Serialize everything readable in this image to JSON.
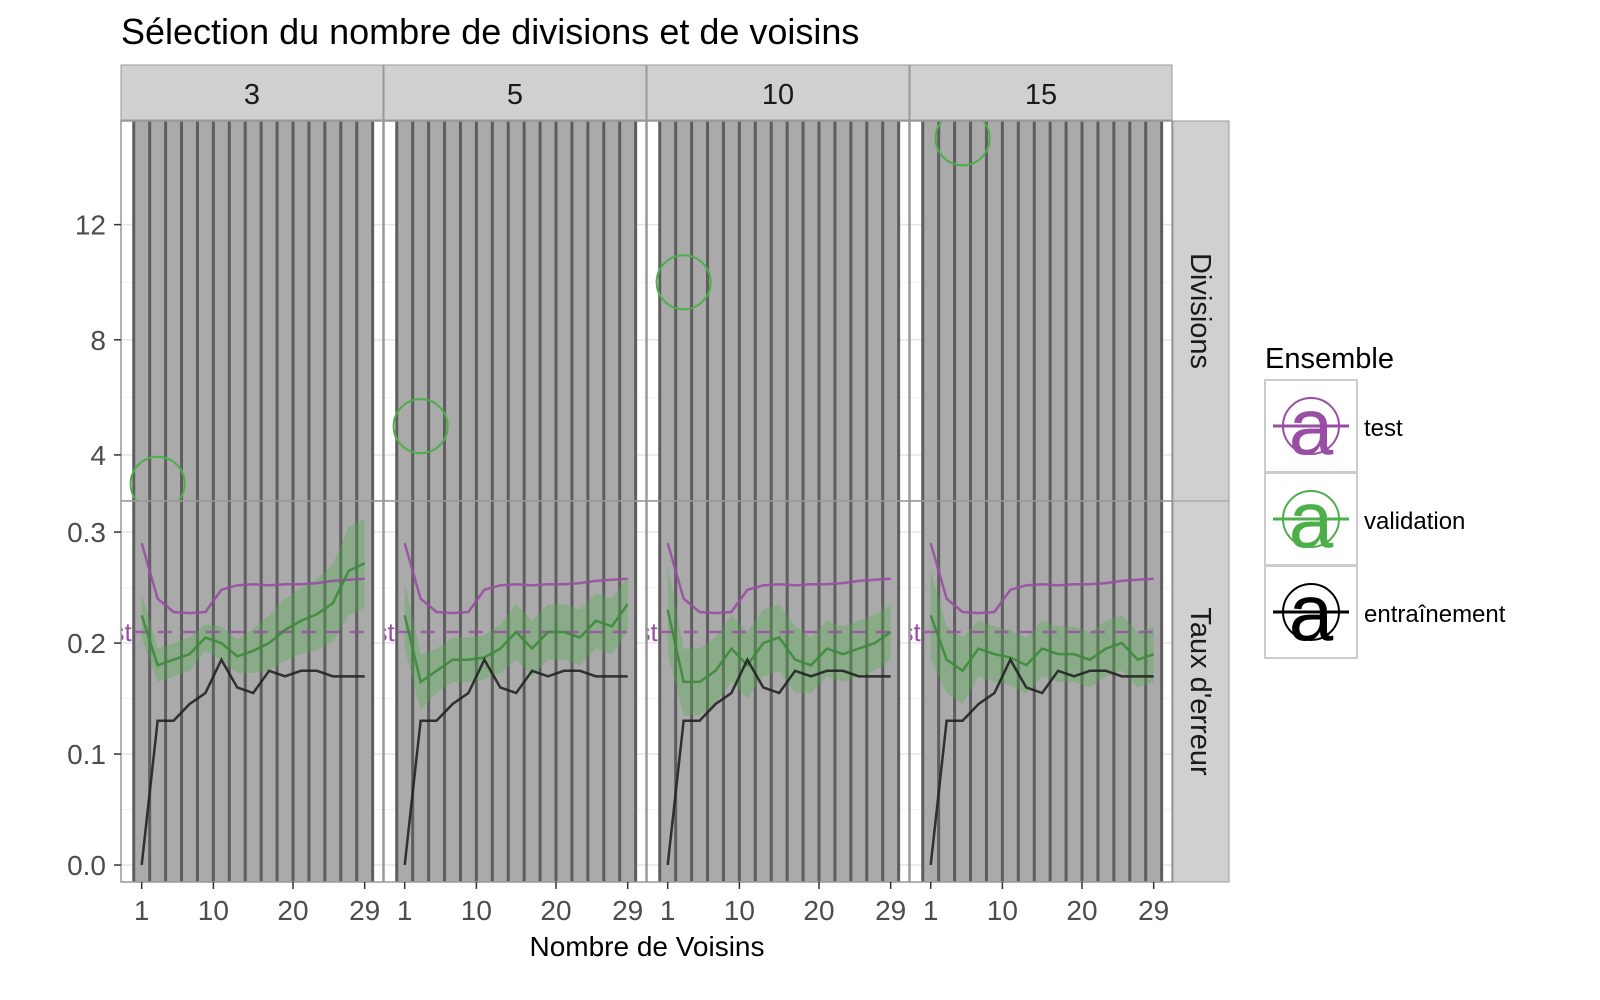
{
  "chart_data": {
    "type": "line",
    "title": "Sélection du nombre de divisions et de voisins",
    "xlabel": "Nombre de Voisins",
    "x_ticks": [
      1,
      10,
      20,
      29
    ],
    "xlim": [
      -1.6,
      31.3
    ],
    "facet_cols": [
      "3",
      "5",
      "10",
      "15"
    ],
    "facet_rows": [
      {
        "label": "Divisions",
        "ylim": [
          2.4,
          15.6
        ],
        "y_ticks": [
          4,
          8,
          12
        ],
        "y_tick_labels": [
          "4",
          "8",
          "12"
        ]
      },
      {
        "label": "Taux d'erreur",
        "ylim": [
          -0.0153,
          0.328
        ],
        "y_ticks": [
          0,
          0.1,
          0.2,
          0.3
        ],
        "y_tick_labels": [
          "0.0",
          "0.1",
          "0.2",
          "0.3"
        ]
      }
    ],
    "selected_neighbors": [
      {
        "divisions": 3,
        "neighbors": 3
      },
      {
        "divisions": 5,
        "neighbors": 3
      },
      {
        "divisions": 10,
        "neighbors": 3
      },
      {
        "divisions": 15,
        "neighbors": 5
      }
    ],
    "shaded_region": {
      "x_from": 0,
      "x_to": 30,
      "stripe_step": 2
    },
    "test_reference": {
      "value": 0.21,
      "label": "test"
    },
    "x": [
      1,
      3,
      5,
      7,
      9,
      11,
      13,
      15,
      17,
      19,
      21,
      23,
      25,
      27,
      29
    ],
    "series": [
      {
        "name": "entraînement",
        "color": "#000000",
        "values": [
          0,
          0.13,
          0.13,
          0.145,
          0.155,
          0.185,
          0.16,
          0.155,
          0.175,
          0.17,
          0.175,
          0.175,
          0.17,
          0.17,
          0.17
        ]
      },
      {
        "name": "test",
        "color": "#984ea3",
        "values": [
          0.29,
          0.24,
          0.228,
          0.227,
          0.228,
          0.248,
          0.252,
          0.253,
          0.252,
          0.253,
          0.253,
          0.254,
          0.256,
          0.257,
          0.258
        ]
      },
      {
        "name": "validation",
        "color": "#4daf4a",
        "by_divisions": {
          "3": {
            "values": [
              0.225,
              0.18,
              0.185,
              0.19,
              0.205,
              0.2,
              0.188,
              0.193,
              0.2,
              0.212,
              0.22,
              0.226,
              0.236,
              0.265,
              0.272
            ],
            "band": [
              0.02,
              0.015,
              0.015,
              0.015,
              0.012,
              0.015,
              0.015,
              0.02,
              0.025,
              0.028,
              0.03,
              0.032,
              0.035,
              0.04,
              0.04
            ]
          },
          "5": {
            "values": [
              0.225,
              0.165,
              0.175,
              0.185,
              0.185,
              0.187,
              0.195,
              0.21,
              0.195,
              0.21,
              0.21,
              0.205,
              0.22,
              0.215,
              0.235
            ],
            "band": [
              0.03,
              0.025,
              0.02,
              0.02,
              0.02,
              0.02,
              0.022,
              0.025,
              0.025,
              0.025,
              0.025,
              0.025,
              0.025,
              0.025,
              0.025
            ]
          },
          "10": {
            "values": [
              0.23,
              0.165,
              0.165,
              0.175,
              0.195,
              0.18,
              0.2,
              0.205,
              0.185,
              0.18,
              0.195,
              0.19,
              0.195,
              0.2,
              0.21
            ],
            "band": [
              0.04,
              0.03,
              0.03,
              0.03,
              0.03,
              0.03,
              0.03,
              0.03,
              0.03,
              0.025,
              0.025,
              0.025,
              0.025,
              0.025,
              0.025
            ]
          },
          "15": {
            "values": [
              0.225,
              0.185,
              0.175,
              0.195,
              0.19,
              0.187,
              0.18,
              0.195,
              0.19,
              0.19,
              0.185,
              0.195,
              0.2,
              0.185,
              0.19
            ],
            "band": [
              0.04,
              0.03,
              0.03,
              0.025,
              0.025,
              0.025,
              0.025,
              0.025,
              0.025,
              0.025,
              0.025,
              0.025,
              0.025,
              0.025,
              0.025
            ]
          }
        }
      }
    ],
    "legend": {
      "title": "Ensemble",
      "placement": "right",
      "entries": [
        {
          "label": "test",
          "color": "#984ea3"
        },
        {
          "label": "validation",
          "color": "#4daf4a"
        },
        {
          "label": "entraînement",
          "color": "#000000"
        }
      ]
    }
  }
}
